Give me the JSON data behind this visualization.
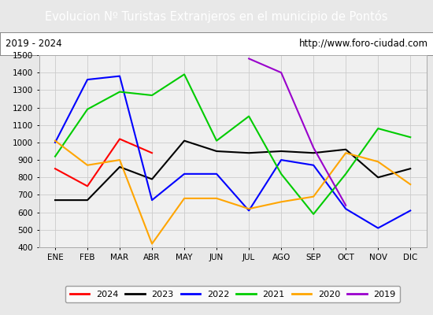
{
  "title": "Evolucion Nº Turistas Extranjeros en el municipio de Pontós",
  "subtitle_left": "2019 - 2024",
  "subtitle_right": "http://www.foro-ciudad.com",
  "title_bg_color": "#4472c4",
  "title_fg_color": "#ffffff",
  "months": [
    "ENE",
    "FEB",
    "MAR",
    "ABR",
    "MAY",
    "JUN",
    "JUL",
    "AGO",
    "SEP",
    "OCT",
    "NOV",
    "DIC"
  ],
  "ylim": [
    400,
    1500
  ],
  "yticks": [
    400,
    500,
    600,
    700,
    800,
    900,
    1000,
    1100,
    1200,
    1300,
    1400,
    1500
  ],
  "series": {
    "2024": {
      "color": "#ff0000",
      "data": [
        850,
        750,
        1020,
        940,
        null,
        null,
        null,
        null,
        null,
        null,
        null,
        null
      ]
    },
    "2023": {
      "color": "#000000",
      "data": [
        670,
        670,
        860,
        790,
        1010,
        950,
        940,
        950,
        940,
        960,
        800,
        850
      ]
    },
    "2022": {
      "color": "#0000ff",
      "data": [
        1000,
        1360,
        1380,
        670,
        820,
        820,
        610,
        900,
        870,
        620,
        510,
        610
      ]
    },
    "2021": {
      "color": "#00cc00",
      "data": [
        920,
        1190,
        1290,
        1270,
        1390,
        1010,
        1150,
        820,
        590,
        820,
        1080,
        1030
      ]
    },
    "2020": {
      "color": "#ffa500",
      "data": [
        1010,
        870,
        900,
        420,
        680,
        680,
        620,
        660,
        690,
        940,
        890,
        760
      ]
    },
    "2019": {
      "color": "#9900cc",
      "data": [
        null,
        null,
        null,
        null,
        null,
        null,
        1480,
        1400,
        970,
        640,
        null,
        null
      ]
    }
  },
  "legend_order": [
    "2024",
    "2023",
    "2022",
    "2021",
    "2020",
    "2019"
  ],
  "bg_color": "#e8e8e8",
  "plot_bg_color": "#f0f0f0",
  "grid_color": "#cccccc",
  "subtitle_bg_color": "#ffffff"
}
